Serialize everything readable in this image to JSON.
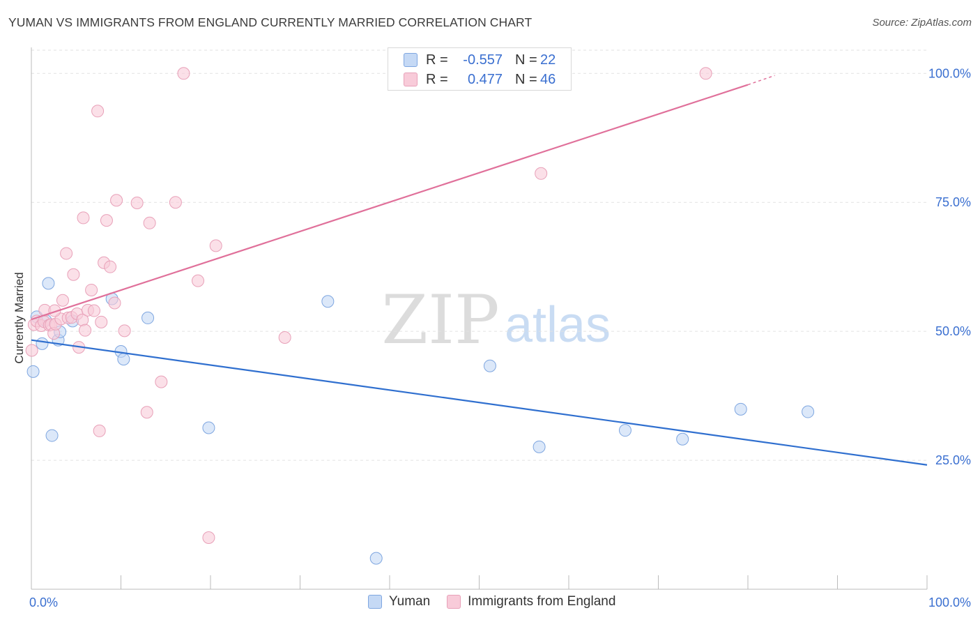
{
  "title": "YUMAN VS IMMIGRANTS FROM ENGLAND CURRENTLY MARRIED CORRELATION CHART",
  "source": "Source: ZipAtlas.com",
  "watermark": {
    "zip": "ZIP",
    "atlas": "atlas"
  },
  "legend_top": [
    {
      "r_label": "R =",
      "r_value": "-0.557",
      "n_label": "N =",
      "n_value": "22"
    },
    {
      "r_label": "R =",
      "r_value": "0.477",
      "n_label": "N =",
      "n_value": "46"
    }
  ],
  "legend_bottom": [
    "Yuman",
    "Immigrants from England"
  ],
  "colors": {
    "blue_fill": "#c5d9f5",
    "blue_stroke": "#7ea6e0",
    "blue_line": "#2f6fcf",
    "pink_fill": "#f8cbd9",
    "pink_stroke": "#e8a0b8",
    "pink_line": "#e0709a",
    "tick_label": "#3a6fd0"
  },
  "chart_data": {
    "type": "scatter",
    "title": "YUMAN VS IMMIGRANTS FROM ENGLAND CURRENTLY MARRIED CORRELATION CHART",
    "xlabel": "",
    "ylabel": "Currently Married",
    "xlim": [
      0,
      100
    ],
    "ylim": [
      0,
      104.5
    ],
    "x_tick_labels": [
      "0.0%",
      "100.0%"
    ],
    "y_ticks": [
      25,
      50,
      75,
      100
    ],
    "y_tick_labels": [
      "25.0%",
      "50.0%",
      "75.0%",
      "100.0%"
    ],
    "grid": true,
    "series": [
      {
        "name": "Yuman",
        "r": -0.557,
        "n": 22,
        "points": [
          [
            0.2,
            42.2
          ],
          [
            0.6,
            52.8
          ],
          [
            1.2,
            47.6
          ],
          [
            1.6,
            52.1
          ],
          [
            1.9,
            59.3
          ],
          [
            2.3,
            29.8
          ],
          [
            3.0,
            48.3
          ],
          [
            3.2,
            49.9
          ],
          [
            4.6,
            52.0
          ],
          [
            9.0,
            56.3
          ],
          [
            10.0,
            46.1
          ],
          [
            10.3,
            44.6
          ],
          [
            13.0,
            52.6
          ],
          [
            19.8,
            31.3
          ],
          [
            33.1,
            55.8
          ],
          [
            38.5,
            6.0
          ],
          [
            51.2,
            43.3
          ],
          [
            56.7,
            27.6
          ],
          [
            66.3,
            30.8
          ],
          [
            72.7,
            29.1
          ],
          [
            79.2,
            34.9
          ],
          [
            86.7,
            34.4
          ]
        ],
        "trendline": {
          "x": [
            0,
            100
          ],
          "y": [
            48.3,
            24.1
          ]
        }
      },
      {
        "name": "Immigrants from England",
        "r": 0.477,
        "n": 46,
        "points": [
          [
            0.05,
            46.3
          ],
          [
            0.3,
            51.3
          ],
          [
            0.6,
            52.0
          ],
          [
            1.1,
            51.1
          ],
          [
            1.4,
            51.9
          ],
          [
            1.5,
            54.1
          ],
          [
            2.0,
            51.2
          ],
          [
            2.2,
            51.3
          ],
          [
            2.5,
            49.6
          ],
          [
            2.7,
            51.4
          ],
          [
            3.3,
            52.4
          ],
          [
            3.5,
            56.0
          ],
          [
            3.9,
            65.1
          ],
          [
            4.1,
            52.6
          ],
          [
            4.5,
            52.7
          ],
          [
            4.7,
            61.0
          ],
          [
            5.1,
            53.4
          ],
          [
            5.3,
            46.9
          ],
          [
            5.7,
            52.2
          ],
          [
            5.8,
            72.0
          ],
          [
            6.0,
            50.2
          ],
          [
            6.3,
            54.1
          ],
          [
            6.7,
            58.0
          ],
          [
            7.0,
            54.0
          ],
          [
            7.4,
            92.7
          ],
          [
            7.6,
            30.7
          ],
          [
            7.8,
            51.8
          ],
          [
            8.1,
            63.3
          ],
          [
            8.4,
            71.5
          ],
          [
            8.8,
            62.5
          ],
          [
            9.3,
            55.5
          ],
          [
            9.5,
            75.4
          ],
          [
            10.4,
            50.1
          ],
          [
            11.8,
            74.9
          ],
          [
            12.9,
            34.3
          ],
          [
            13.2,
            71.0
          ],
          [
            14.5,
            40.2
          ],
          [
            16.1,
            75.0
          ],
          [
            17.0,
            100.0
          ],
          [
            18.6,
            59.8
          ],
          [
            19.8,
            10.0
          ],
          [
            20.6,
            66.6
          ],
          [
            28.3,
            48.8
          ],
          [
            56.9,
            80.6
          ],
          [
            75.3,
            100.0
          ],
          [
            2.6,
            54.0
          ]
        ],
        "trendline": {
          "x": [
            0,
            80
          ],
          "y": [
            52.3,
            97.8
          ]
        },
        "trendline_dashed_extension": {
          "x": [
            80,
            83
          ],
          "y": [
            97.8,
            99.6
          ]
        }
      }
    ]
  }
}
